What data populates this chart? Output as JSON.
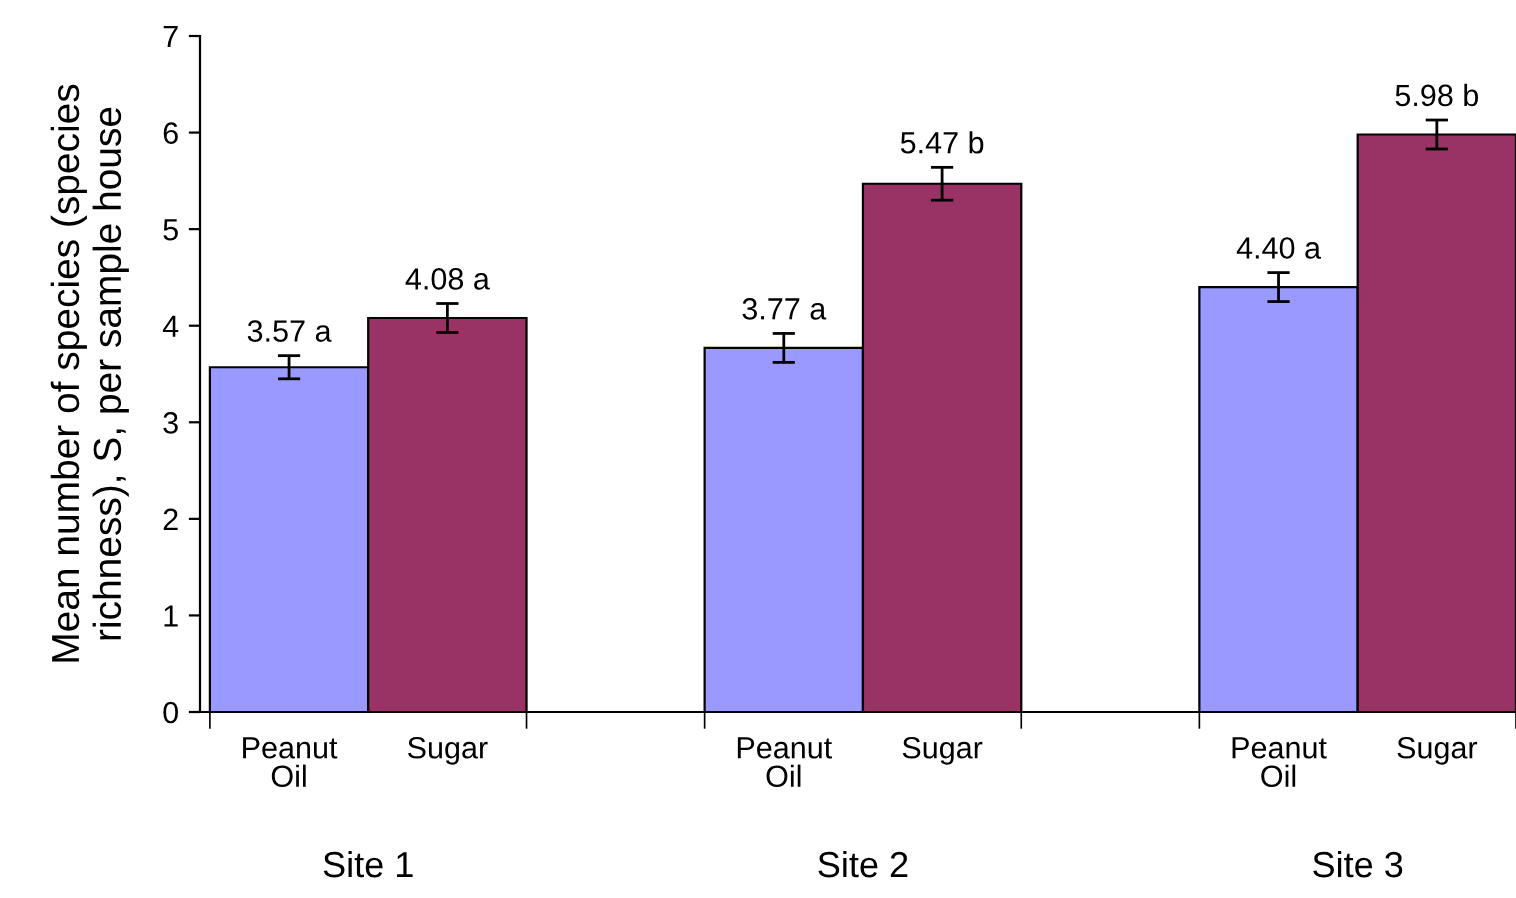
{
  "chart_data": {
    "type": "bar",
    "ylabel": "Mean number of species (species\nrichness), S, per sample house",
    "categories": [
      "Site 1",
      "Site 2",
      "Site 3"
    ],
    "series": [
      {
        "name": "Peanut Oil",
        "color": "#9999ff",
        "values": [
          3.57,
          3.77,
          4.4
        ],
        "errors": [
          0.12,
          0.15,
          0.15
        ],
        "value_labels": [
          "3.57 a",
          "3.77 a",
          "4.40 a"
        ]
      },
      {
        "name": "Sugar",
        "color": "#993366",
        "values": [
          4.08,
          5.47,
          5.98
        ],
        "errors": [
          0.15,
          0.17,
          0.15
        ],
        "value_labels": [
          "4.08 a",
          "5.47 b",
          "5.98 b"
        ]
      }
    ],
    "ylim": [
      0,
      7
    ],
    "yticks": [
      0,
      1,
      2,
      3,
      4,
      5,
      6,
      7
    ],
    "grid": false,
    "legend": false
  }
}
